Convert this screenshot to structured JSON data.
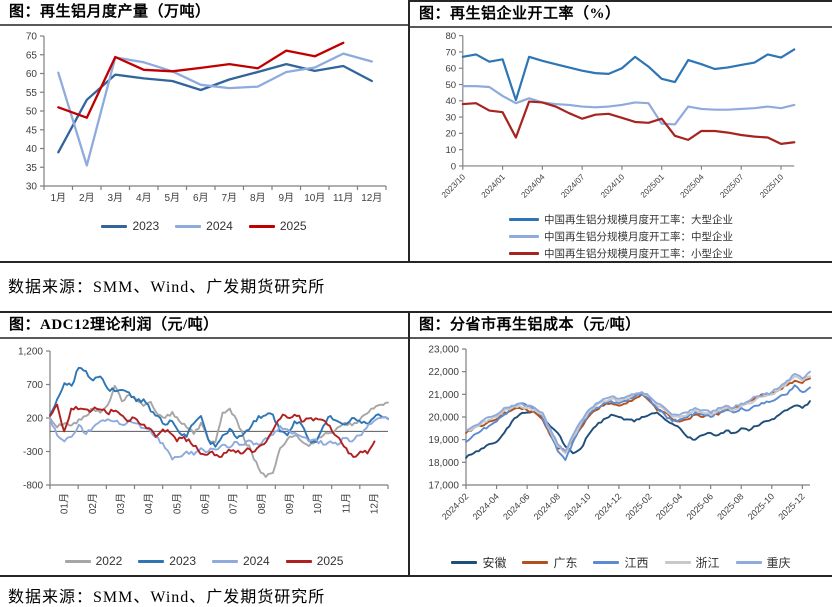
{
  "sources": {
    "top": "数据来源：SMM、Wind、广发期货研究所",
    "bottom": "数据来源：SMM、Wind、广发期货研究所"
  },
  "chart_data": [
    {
      "type": "line",
      "title": "图：再生铝月度产量（万吨）",
      "ylabel": "",
      "xlabel": "",
      "ylim": [
        30,
        70
      ],
      "yticks": [
        30,
        35,
        40,
        45,
        50,
        55,
        60,
        65,
        70
      ],
      "grid": false,
      "legend_position": "bottom",
      "categories": [
        "1月",
        "2月",
        "3月",
        "4月",
        "5月",
        "6月",
        "7月",
        "8月",
        "9月",
        "10月",
        "11月",
        "12月"
      ],
      "series": [
        {
          "name": "2023",
          "color": "#31659C",
          "values": [
            39,
            53,
            59.7,
            58.7,
            58,
            55.6,
            58.4,
            60.4,
            62.5,
            60.7,
            62,
            58
          ]
        },
        {
          "name": "2024",
          "color": "#8FAADC",
          "values": [
            60.2,
            35.5,
            64.3,
            63,
            60.6,
            57,
            56.1,
            56.5,
            60.4,
            61.6,
            65.3,
            63.2
          ]
        },
        {
          "name": "2025",
          "color": "#C00000",
          "values": [
            51,
            48.2,
            64.4,
            61,
            60.6,
            61.5,
            62.5,
            61.4,
            66.1,
            64.6,
            68.2
          ]
        }
      ]
    },
    {
      "type": "line",
      "title": "图：再生铝企业开工率（%）",
      "ylabel": "",
      "xlabel": "",
      "ylim": [
        0,
        80
      ],
      "yticks": [
        0,
        10,
        20,
        30,
        40,
        50,
        60,
        70,
        80
      ],
      "grid": false,
      "legend_position": "bottom",
      "x_start": "2023/10",
      "x_labels": [
        "2023/10",
        "2024/01",
        "2024/04",
        "2024/07",
        "2024/10",
        "2025/01",
        "2025/04",
        "2025/07",
        "2025/10"
      ],
      "series": [
        {
          "name": "中国再生铝分规模月度开工率：大型企业",
          "color": "#2E75B6",
          "values": [
            67,
            68.5,
            64,
            65.5,
            40.5,
            67,
            64.5,
            62.5,
            60.5,
            58.5,
            57,
            56.5,
            60,
            67,
            61,
            53.5,
            51.5,
            65,
            62.5,
            59.5,
            60.5,
            62,
            63.5,
            68.5,
            66.5,
            71.5
          ]
        },
        {
          "name": "中国再生铝分规模月度开工率：中型企业",
          "color": "#8FAADC",
          "values": [
            49,
            49,
            48.5,
            43,
            38.5,
            41.5,
            39,
            38,
            37.5,
            36.5,
            36,
            36.5,
            37.5,
            39,
            38.5,
            26,
            25.5,
            36.5,
            35,
            34.5,
            34.5,
            35,
            35.5,
            36.5,
            35.5,
            37.5
          ]
        },
        {
          "name": "中国再生铝分规模月度开工率：小型企业",
          "color": "#A6241F",
          "values": [
            38,
            38.5,
            34,
            33,
            17.5,
            39.5,
            39,
            36.5,
            32.5,
            29,
            31.5,
            32,
            29.5,
            27,
            26.5,
            29,
            18.5,
            16,
            21.5,
            21.5,
            20.5,
            19,
            18,
            17.5,
            13.5,
            14.5
          ]
        }
      ]
    },
    {
      "type": "line",
      "title": "图：ADC12理论利润（元/吨）",
      "ylabel": "",
      "xlabel": "",
      "ylim": [
        -800,
        1200
      ],
      "yticks": [
        -800,
        -300,
        200,
        700,
        1200
      ],
      "ytick_labels": [
        "-800",
        "-300",
        "200",
        "700",
        "1,200"
      ],
      "zero_line": true,
      "grid": false,
      "legend_position": "bottom",
      "categories": [
        "01月",
        "02月",
        "03月",
        "04月",
        "05月",
        "06月",
        "07月",
        "08月",
        "09月",
        "10月",
        "11月",
        "12月"
      ],
      "series": [
        {
          "name": "2022",
          "color": "#A6A6A6",
          "span": 1,
          "values": [
            200,
            60,
            120,
            90,
            180,
            230,
            340,
            280,
            390,
            680,
            450,
            550,
            480,
            380,
            440,
            250,
            200,
            290,
            150,
            60,
            -40,
            130,
            -120,
            -160,
            280,
            340,
            160,
            -120,
            -300,
            -550,
            -680,
            -620,
            -250,
            -120,
            -60,
            -150,
            -220,
            -130,
            -60,
            -20,
            60,
            130,
            90,
            160,
            260,
            340,
            400,
            430
          ]
        },
        {
          "name": "2023",
          "color": "#2E75B6",
          "span": 1,
          "values": [
            250,
            480,
            720,
            680,
            950,
            900,
            760,
            820,
            640,
            600,
            620,
            580,
            450,
            480,
            300,
            230,
            100,
            150,
            -20,
            -80,
            120,
            230,
            -120,
            -230,
            -60,
            40,
            -100,
            -30,
            80,
            230,
            240,
            250,
            0,
            -60,
            150,
            100,
            -130,
            -160,
            80,
            230,
            150,
            100,
            200,
            160,
            120,
            200,
            230,
            190
          ]
        },
        {
          "name": "2024",
          "color": "#8FAADC",
          "span": 1,
          "values": [
            180,
            -60,
            -150,
            -80,
            100,
            -40,
            60,
            150,
            180,
            150,
            100,
            170,
            120,
            50,
            0,
            -90,
            -250,
            -420,
            -380,
            -300,
            -350,
            -250,
            -300,
            -270,
            -200,
            -240,
            -160,
            -200,
            -150,
            -200,
            -100,
            -50,
            80,
            30,
            -20,
            -80,
            -150,
            -120,
            -200,
            -150,
            -200,
            -100,
            -150,
            -60,
            50,
            150,
            200,
            180
          ]
        },
        {
          "name": "2025",
          "color": "#B02020",
          "span": 0.96,
          "values": [
            230,
            400,
            0,
            340,
            330,
            330,
            320,
            330,
            280,
            300,
            250,
            150,
            200,
            100,
            50,
            -80,
            30,
            -20,
            -150,
            -80,
            -180,
            -280,
            -350,
            -300,
            -380,
            -320,
            -280,
            -330,
            -250,
            -300,
            -200,
            -80,
            100,
            250,
            200,
            230,
            150,
            200,
            180,
            150,
            0,
            -100,
            -250,
            -380,
            -300,
            -330,
            -150
          ]
        }
      ]
    },
    {
      "type": "line",
      "title": "图：分省市再生铝成本（元/吨）",
      "ylabel": "",
      "xlabel": "",
      "ylim": [
        17000,
        23000
      ],
      "yticks": [
        17000,
        18000,
        19000,
        20000,
        21000,
        22000,
        23000
      ],
      "ytick_labels": [
        "17,000",
        "18,000",
        "19,000",
        "20,000",
        "21,000",
        "22,000",
        "23,000"
      ],
      "grid": false,
      "legend_position": "bottom",
      "x_labels": [
        "2024-02",
        "2024-04",
        "2024-06",
        "2024-08",
        "2024-10",
        "2024-12",
        "2025-02",
        "2025-04",
        "2025-06",
        "2025-08",
        "2025-10",
        "2025-12"
      ],
      "series": [
        {
          "name": "安徽",
          "color": "#1F4E79",
          "values": [
            18200,
            18400,
            18600,
            18800,
            18900,
            19300,
            19800,
            20100,
            20200,
            20300,
            20000,
            19600,
            19300,
            18700,
            18400,
            18600,
            19200,
            19600,
            19900,
            20100,
            20000,
            19900,
            19800,
            20000,
            20100,
            20200,
            19900,
            19700,
            19500,
            19100,
            19000,
            19200,
            19300,
            19200,
            19400,
            19300,
            19500,
            19400,
            19600,
            19800,
            19900,
            20100,
            20300,
            20500,
            20400,
            20700
          ]
        },
        {
          "name": "广东",
          "color": "#B4501E",
          "values": [
            19300,
            19500,
            19600,
            19800,
            19900,
            20200,
            20300,
            20400,
            20300,
            20200,
            19900,
            19200,
            18600,
            18500,
            19000,
            19500,
            20000,
            20300,
            20500,
            20600,
            20500,
            20600,
            20800,
            21000,
            20700,
            20300,
            20200,
            19900,
            19800,
            19900,
            20100,
            20000,
            20200,
            20100,
            20300,
            20400,
            20500,
            20700,
            20900,
            21000,
            21000,
            21200,
            21400,
            21600,
            21500,
            21700
          ]
        },
        {
          "name": "江西",
          "color": "#5B8BD0",
          "values": [
            18900,
            19200,
            19400,
            19600,
            19800,
            20100,
            20400,
            20600,
            20500,
            20400,
            20000,
            19300,
            18500,
            18100,
            18900,
            19600,
            20100,
            20400,
            20600,
            20700,
            20600,
            20700,
            20900,
            21000,
            20800,
            20400,
            20100,
            19800,
            19900,
            20000,
            20200,
            20100,
            20000,
            20200,
            20300,
            20200,
            20400,
            20300,
            20500,
            20600,
            20700,
            20900,
            21000,
            21400,
            21100,
            21300
          ]
        },
        {
          "name": "浙江",
          "color": "#C9C9C9",
          "values": [
            19400,
            19500,
            19700,
            19900,
            20000,
            20300,
            20400,
            20500,
            20400,
            20300,
            20100,
            19400,
            18700,
            18400,
            19100,
            19700,
            20200,
            20500,
            20700,
            20800,
            20700,
            20800,
            21000,
            21100,
            20900,
            20500,
            20300,
            20000,
            20000,
            20100,
            20300,
            20200,
            20100,
            20300,
            20400,
            20300,
            20500,
            20600,
            20800,
            20900,
            21000,
            21200,
            21500,
            21800,
            21600,
            21800
          ]
        },
        {
          "name": "重庆",
          "color": "#8FAADC",
          "values": [
            19400,
            19600,
            19800,
            20000,
            20100,
            20400,
            20500,
            20600,
            20500,
            20400,
            20200,
            19500,
            18800,
            18500,
            19200,
            19800,
            20300,
            20600,
            20800,
            20900,
            20800,
            20900,
            21000,
            21100,
            20900,
            20600,
            20400,
            20100,
            20100,
            20200,
            20400,
            20300,
            20200,
            20400,
            20500,
            20400,
            20600,
            20700,
            20900,
            21000,
            21100,
            21300,
            21600,
            21900,
            21700,
            22000
          ]
        }
      ]
    }
  ]
}
